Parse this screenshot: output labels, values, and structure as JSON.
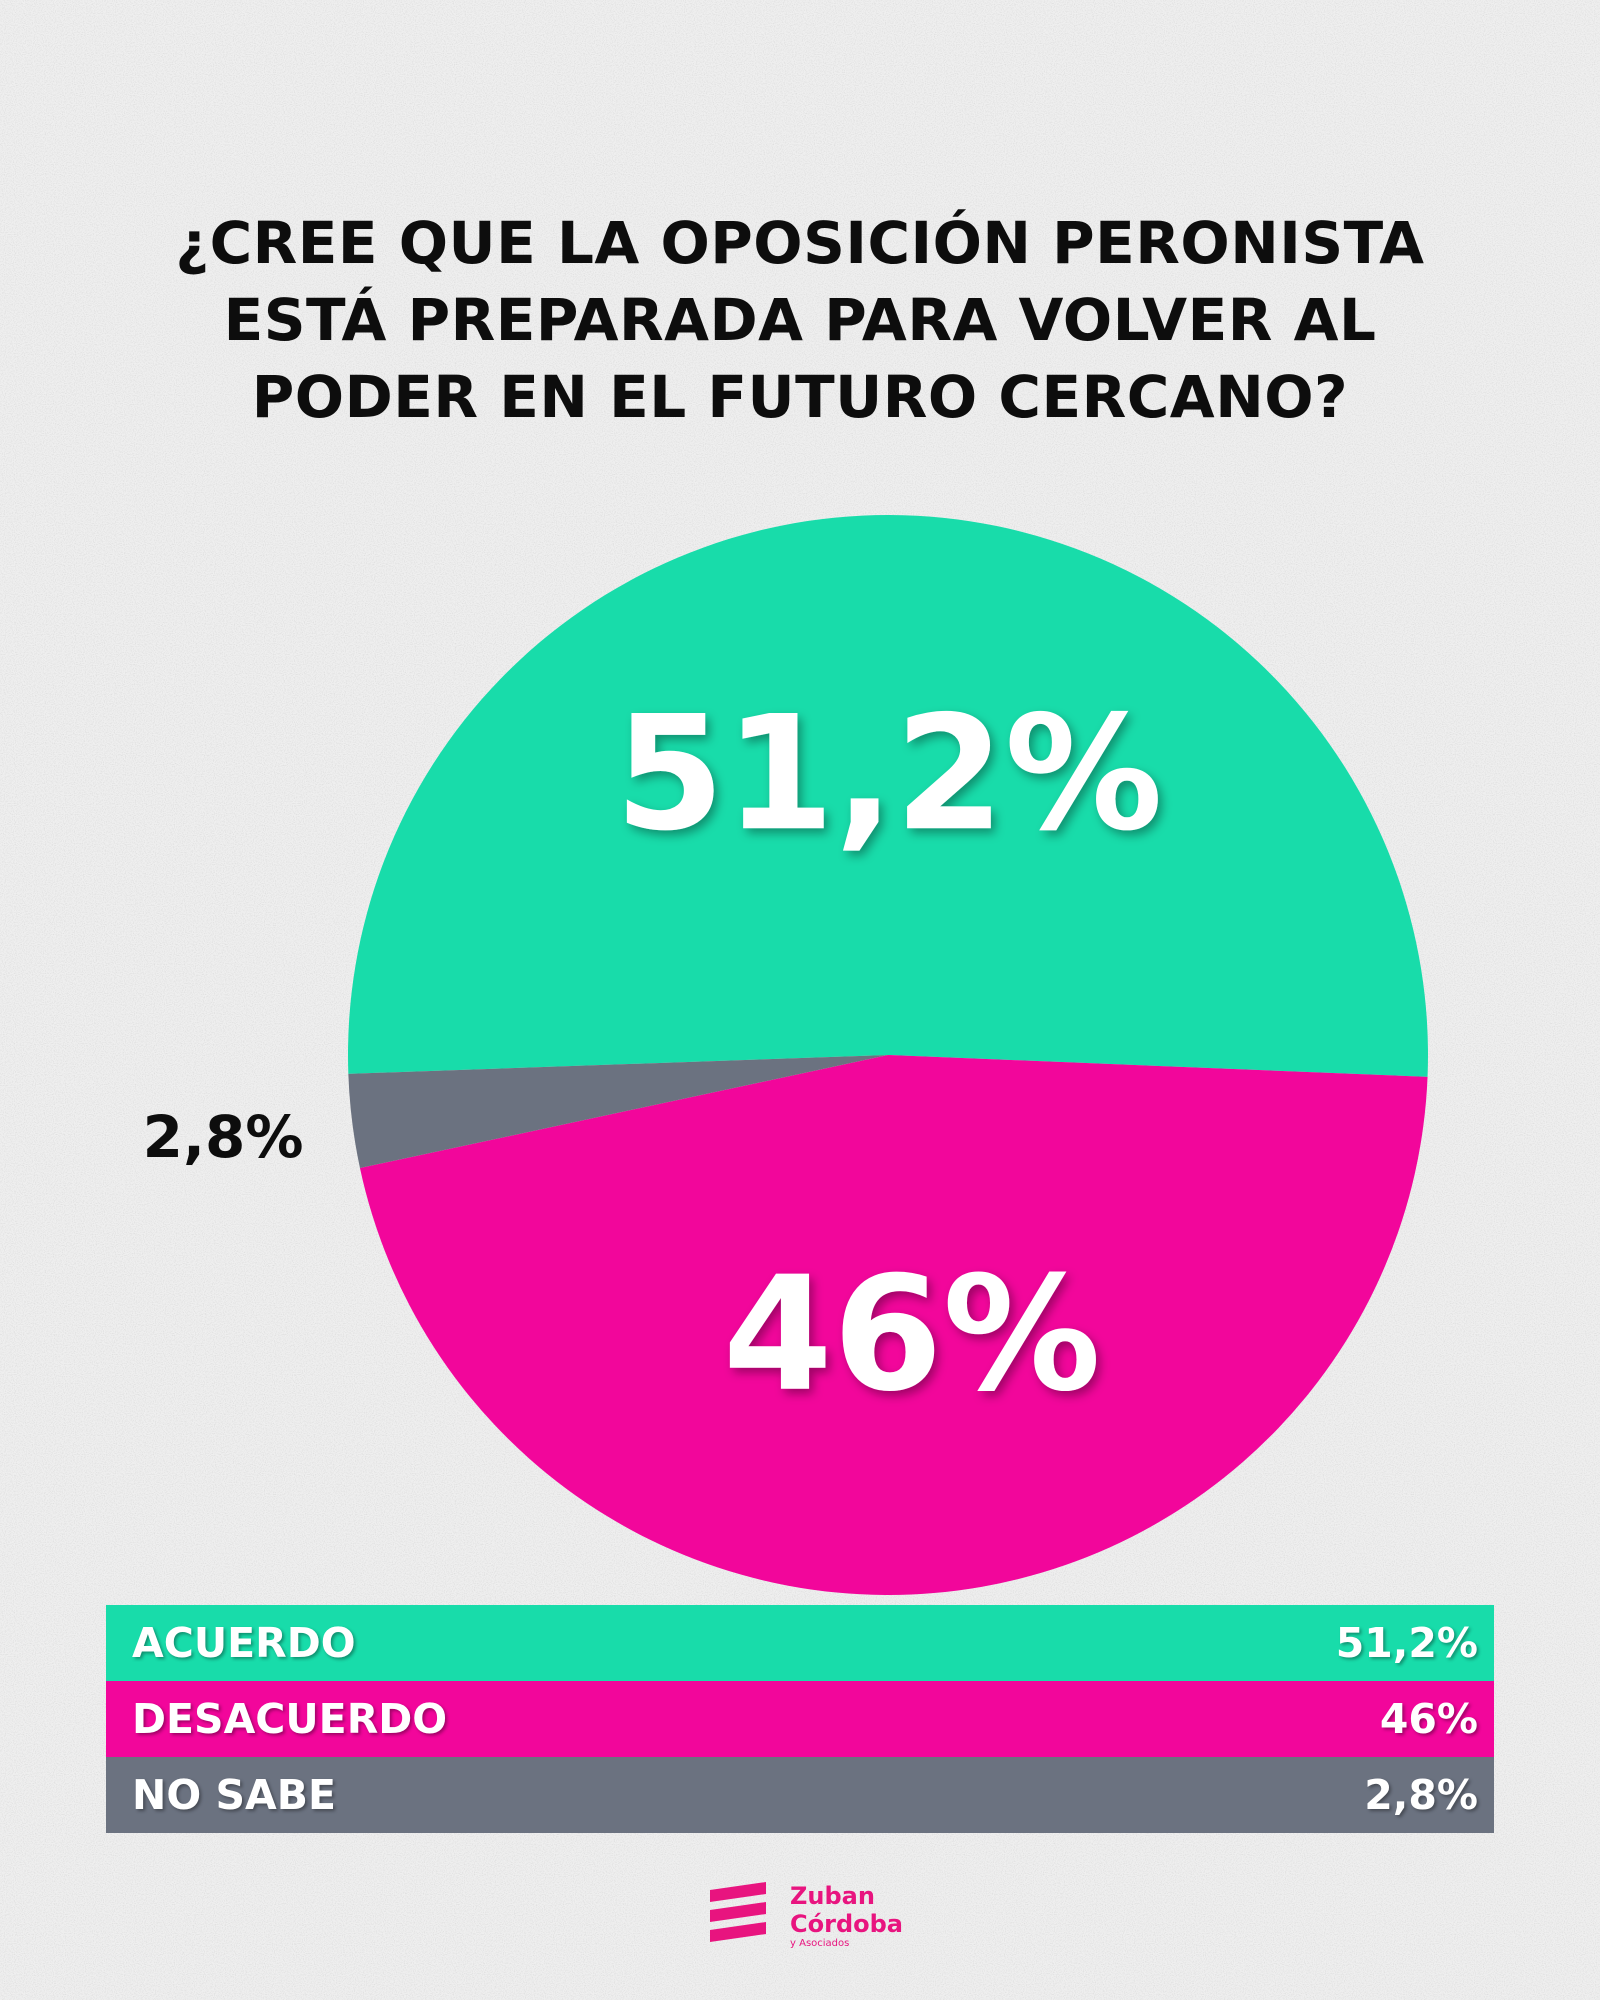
{
  "title_lines": [
    "¿CREE QUE LA OPOSICIÓN PERONISTA",
    "ESTÁ PREPARADA PARA VOLVER AL",
    "PODER EN EL FUTURO CERCANO?"
  ],
  "chart_data": {
    "type": "pie",
    "title": "¿CREE QUE LA OPOSICIÓN PERONISTA ESTÁ PREPARADA PARA VOLVER AL PODER EN EL FUTURO CERCANO?",
    "categories": [
      "ACUERDO",
      "DESACUERDO",
      "NO SABE"
    ],
    "values": [
      51.2,
      46,
      2.8
    ],
    "value_labels": [
      "51,2%",
      "46%",
      "2,8%"
    ],
    "colors": [
      "#18dcaa",
      "#f2069b",
      "#6b7280"
    ]
  },
  "legend": [
    {
      "label": "ACUERDO",
      "value": "51,2%"
    },
    {
      "label": "DESACUERDO",
      "value": "46%"
    },
    {
      "label": "NO SABE",
      "value": "2,8%"
    }
  ],
  "logo": {
    "name_line1": "Zuban",
    "name_line2": "Córdoba",
    "tagline": "y Asociados",
    "color": "#e8147f"
  }
}
